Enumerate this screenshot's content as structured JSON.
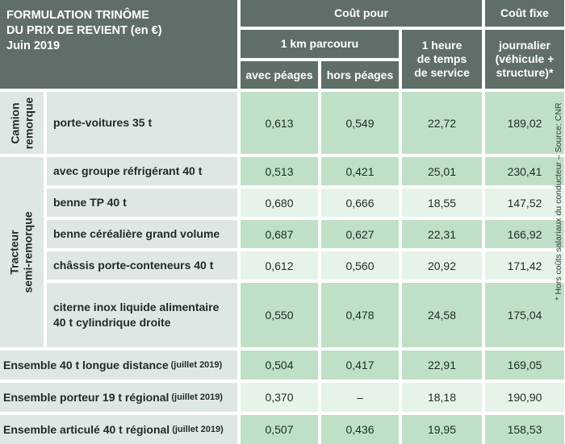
{
  "title": {
    "line1": "FORMULATION TRINÔME",
    "line2": "DU PRIX DE REVIENT (en €)",
    "line3": "Juin 2019"
  },
  "headers": {
    "cout_pour": "Coût pour",
    "cout_fixe": "Coût fixe",
    "km": "1 km parcouru",
    "heure": [
      "1 heure",
      "de temps",
      "de service"
    ],
    "journalier": [
      "journalier",
      "(véhicule +",
      "structure)*"
    ],
    "avec_peages": "avec péages",
    "hors_peages": "hors péages"
  },
  "groups": {
    "camion": [
      "Camion",
      "remorque"
    ],
    "tracteur": [
      "Tracteur",
      "semi-remorque"
    ]
  },
  "rows": [
    {
      "label": "porte-voitures 35 t",
      "avec": "0,613",
      "hors": "0,549",
      "heure": "22,72",
      "fixe": "189,02"
    },
    {
      "label": "avec groupe réfrigérant 40 t",
      "avec": "0,513",
      "hors": "0,421",
      "heure": "25,01",
      "fixe": "230,41"
    },
    {
      "label": "benne TP 40 t",
      "avec": "0,680",
      "hors": "0,666",
      "heure": "18,55",
      "fixe": "147,52"
    },
    {
      "label": "benne céréalière grand volume",
      "avec": "0,687",
      "hors": "0,627",
      "heure": "22,31",
      "fixe": "166,92"
    },
    {
      "label": "châssis porte-conteneurs 40 t",
      "avec": "0,612",
      "hors": "0,560",
      "heure": "20,92",
      "fixe": "171,42"
    },
    {
      "label": [
        "citerne inox liquide alimentaire",
        "40 t cylindrique droite"
      ],
      "avec": "0,550",
      "hors": "0,478",
      "heure": "24,58",
      "fixe": "175,04"
    },
    {
      "label": "Ensemble 40 t longue distance",
      "note": "(juillet 2019)",
      "avec": "0,504",
      "hors": "0,417",
      "heure": "22,91",
      "fixe": "169,05"
    },
    {
      "label": "Ensemble porteur 19 t régional",
      "note": "(juillet 2019)",
      "avec": "0,370",
      "hors": "–",
      "heure": "18,18",
      "fixe": "190,90"
    },
    {
      "label": "Ensemble articulé 40 t régional",
      "note": "(juillet 2019)",
      "avec": "0,507",
      "hors": "0,436",
      "heure": "19,95",
      "fixe": "158,53"
    }
  ],
  "side_note": "* Hors coûts salariaux du conducteur – Source: CNR"
}
